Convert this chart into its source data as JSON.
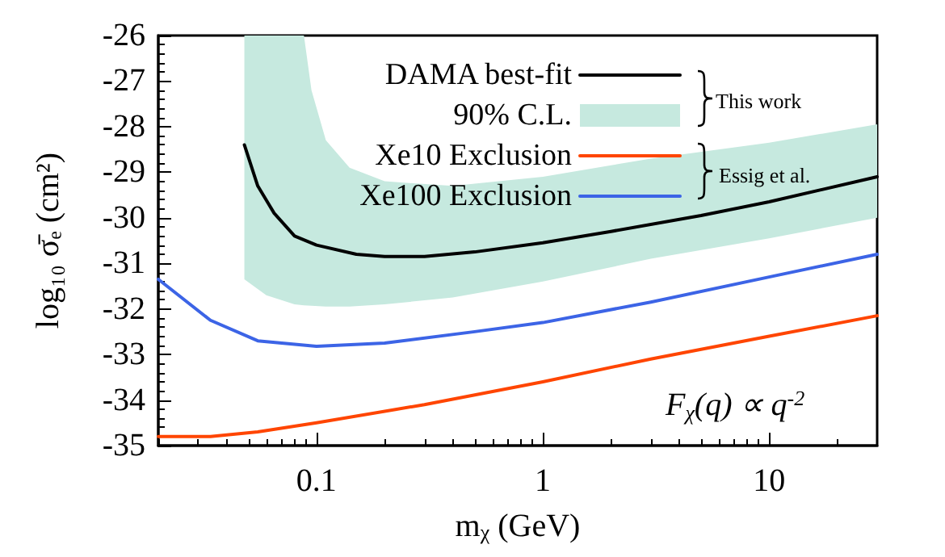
{
  "chart_data": {
    "type": "line",
    "xlabel": "m$_{χ}$ (GeV)",
    "ylabel": "log₁₀ σ̄ₑ (cm²)",
    "log": "x",
    "xlim": [
      0.02,
      30
    ],
    "xticks": [
      0.1,
      1,
      10
    ],
    "ylim": [
      -35,
      -26
    ],
    "yticks": [
      -35,
      -34,
      -33,
      -32,
      -31,
      -30,
      -29,
      -28,
      -27,
      -26
    ],
    "grid": false,
    "legend": "top right",
    "marker": "none",
    "line_style": "solid",
    "series": [
      {
        "name": "DAMA best-fit",
        "color": "#000000",
        "x": [
          0.048,
          0.055,
          0.065,
          0.08,
          0.1,
          0.15,
          0.2,
          0.3,
          0.5,
          1,
          2,
          5,
          10,
          30
        ],
        "values": [
          -28.4,
          -29.3,
          -29.9,
          -30.4,
          -30.6,
          -30.8,
          -30.85,
          -30.85,
          -30.75,
          -30.55,
          -30.3,
          -29.95,
          -29.65,
          -29.1
        ]
      },
      {
        "name": "90% C.L.",
        "type": "area",
        "color": "#c6e9df",
        "x": [
          0.048,
          0.06,
          0.08,
          0.088,
          0.095,
          0.11,
          0.14,
          0.2,
          0.4,
          1,
          3,
          10,
          30
        ],
        "values": [
          null,
          null,
          null,
          null,
          null,
          null,
          null,
          null,
          null,
          null,
          null,
          null,
          null
        ],
        "lower": [
          -31.35,
          -31.7,
          -31.9,
          -31.92,
          -31.93,
          -31.95,
          -31.95,
          -31.9,
          -31.75,
          -31.4,
          -30.9,
          -30.45,
          -30.0
        ],
        "upper": [
          -26,
          -26,
          -26,
          -26,
          -27.2,
          -28.3,
          -28.9,
          -29.2,
          -29.3,
          -29.1,
          -28.7,
          -28.35,
          -27.95
        ]
      },
      {
        "name": "Xe10 Exclusion",
        "color": "#ff4500",
        "x": [
          0.02,
          0.034,
          0.055,
          0.1,
          0.3,
          1,
          3,
          10,
          30
        ],
        "values": [
          -34.8,
          -34.8,
          -34.7,
          -34.5,
          -34.1,
          -33.6,
          -33.1,
          -32.6,
          -32.15
        ]
      },
      {
        "name": "Xe100 Exclusion",
        "color": "#3c64e6",
        "x": [
          0.02,
          0.034,
          0.055,
          0.1,
          0.2,
          0.5,
          1,
          3,
          10,
          30
        ],
        "values": [
          -31.35,
          -32.25,
          -32.7,
          -32.82,
          -32.75,
          -32.5,
          -32.3,
          -31.85,
          -31.3,
          -30.8
        ]
      }
    ],
    "annotations": [
      "This work",
      "Essig et al.",
      "F$_{χ}$(q) ∝ q$^{-2}$"
    ]
  }
}
